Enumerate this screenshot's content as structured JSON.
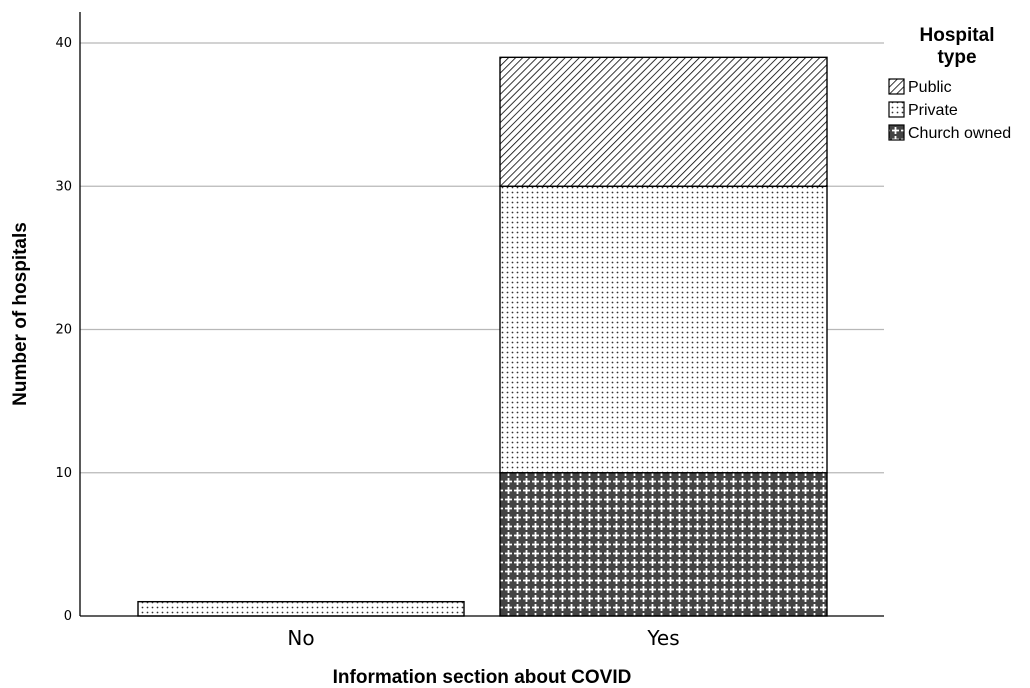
{
  "chart_data": {
    "type": "bar",
    "stacked": true,
    "categories": [
      "No",
      "Yes"
    ],
    "series": [
      {
        "name": "Church owned",
        "values": [
          0,
          10
        ],
        "pattern": "crosshatch-plus"
      },
      {
        "name": "Private",
        "values": [
          1,
          20
        ],
        "pattern": "dots"
      },
      {
        "name": "Public",
        "values": [
          0,
          9
        ],
        "pattern": "diagonal"
      }
    ],
    "xlabel": "Information section about COVID",
    "ylabel": "Number of hospitals",
    "ylim": [
      0,
      42
    ],
    "yticks": [
      0,
      10,
      20,
      30,
      40
    ],
    "grid": true,
    "legend": {
      "title_lines": [
        "Hospital",
        "type"
      ],
      "entries": [
        "Public",
        "Private",
        "Church owned"
      ],
      "placement": "top-right"
    }
  }
}
